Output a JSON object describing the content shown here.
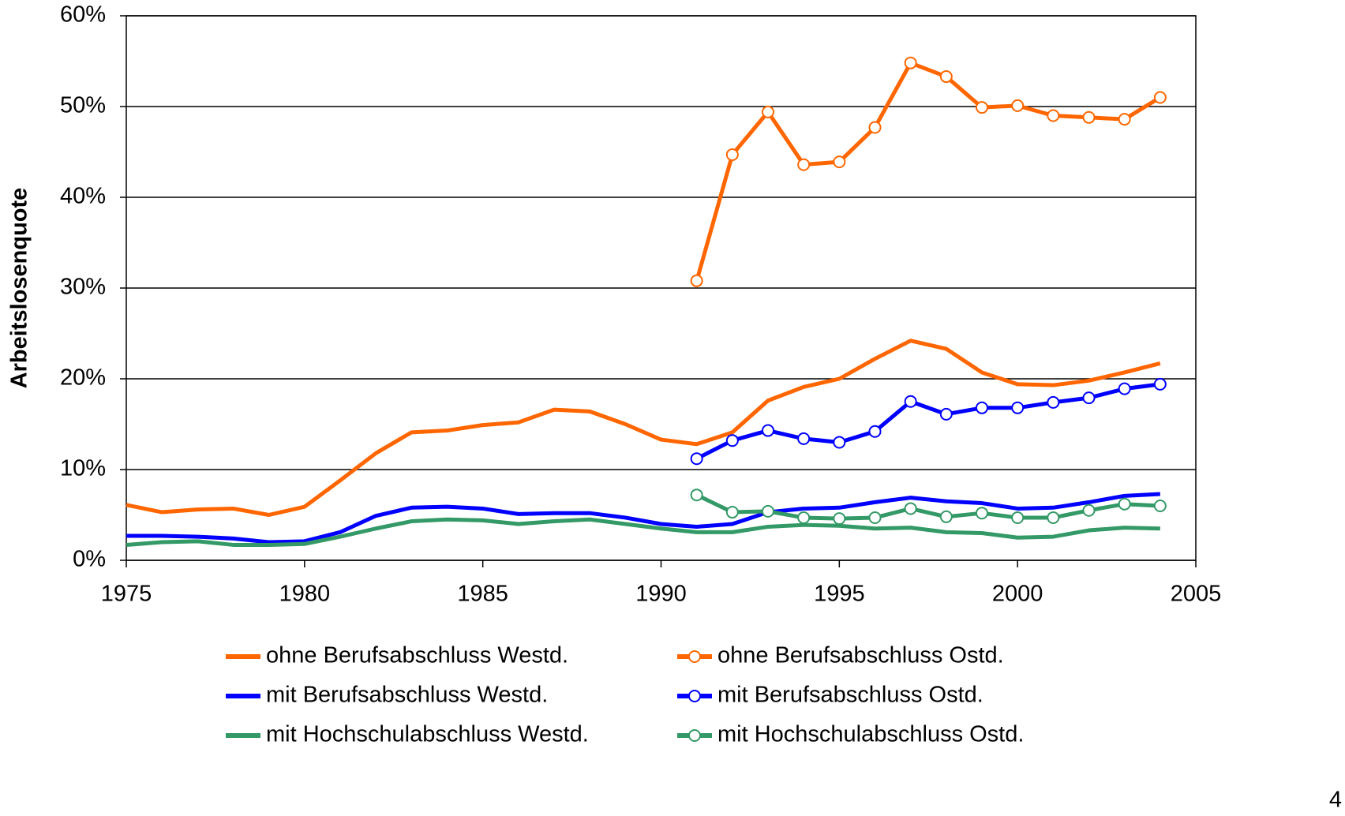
{
  "chart_data": {
    "type": "line",
    "y_label": "Arbeitslosenquote",
    "x": [
      1975,
      1976,
      1977,
      1978,
      1979,
      1980,
      1981,
      1982,
      1983,
      1984,
      1985,
      1986,
      1987,
      1988,
      1989,
      1990,
      1991,
      1992,
      1993,
      1994,
      1995,
      1996,
      1997,
      1998,
      1999,
      2000,
      2001,
      2002,
      2003,
      2004
    ],
    "xlim": [
      1975,
      2005
    ],
    "xticks": [
      1975,
      1980,
      1985,
      1990,
      1995,
      2000,
      2005
    ],
    "ylim": [
      0,
      60
    ],
    "yticks": [
      {
        "value": 0,
        "label": "0%"
      },
      {
        "value": 10,
        "label": "10%"
      },
      {
        "value": 20,
        "label": "20%"
      },
      {
        "value": 30,
        "label": "30%"
      },
      {
        "value": 40,
        "label": "40%"
      },
      {
        "value": 50,
        "label": "50%"
      },
      {
        "value": 60,
        "label": "60%"
      }
    ],
    "grid": true,
    "series": [
      {
        "name": "ohne Berufsabschluss Westd.",
        "color": "#ff6600",
        "markers": false,
        "values": [
          6.1,
          5.3,
          5.6,
          5.7,
          5.0,
          5.9,
          8.8,
          11.8,
          14.1,
          14.3,
          14.9,
          15.2,
          16.6,
          16.4,
          15.0,
          13.3,
          12.8,
          14.1,
          17.6,
          19.1,
          20.0,
          22.2,
          24.2,
          23.3,
          20.7,
          19.4,
          19.3,
          19.8,
          20.7,
          21.7
        ]
      },
      {
        "name": "ohne Berufsabschluss Ostd.",
        "color": "#ff6600",
        "markers": true,
        "values": [
          null,
          null,
          null,
          null,
          null,
          null,
          null,
          null,
          null,
          null,
          null,
          null,
          null,
          null,
          null,
          null,
          30.8,
          44.7,
          49.4,
          43.6,
          43.9,
          47.7,
          54.8,
          53.3,
          49.9,
          50.1,
          49.0,
          48.8,
          48.6,
          51.0
        ]
      },
      {
        "name": "mit Berufsabschluss Westd.",
        "color": "#0000ff",
        "markers": false,
        "values": [
          2.7,
          2.7,
          2.6,
          2.4,
          2.0,
          2.1,
          3.1,
          4.9,
          5.8,
          5.9,
          5.7,
          5.1,
          5.2,
          5.2,
          4.7,
          4.0,
          3.7,
          4.0,
          5.3,
          5.7,
          5.8,
          6.4,
          6.9,
          6.5,
          6.3,
          5.7,
          5.8,
          6.4,
          7.1,
          7.3
        ]
      },
      {
        "name": "mit Berufsabschluss Ostd.",
        "color": "#0000ff",
        "markers": true,
        "values": [
          null,
          null,
          null,
          null,
          null,
          null,
          null,
          null,
          null,
          null,
          null,
          null,
          null,
          null,
          null,
          null,
          11.2,
          13.2,
          14.3,
          13.4,
          13.0,
          14.2,
          17.5,
          16.1,
          16.8,
          16.8,
          17.4,
          17.9,
          18.9,
          19.4
        ]
      },
      {
        "name": "mit Hochschulabschluss Westd.",
        "color": "#339966",
        "markers": false,
        "values": [
          1.7,
          2.0,
          2.1,
          1.7,
          1.7,
          1.8,
          2.6,
          3.5,
          4.3,
          4.5,
          4.4,
          4.0,
          4.3,
          4.5,
          4.0,
          3.5,
          3.1,
          3.1,
          3.7,
          3.9,
          3.8,
          3.5,
          3.6,
          3.1,
          3.0,
          2.5,
          2.6,
          3.3,
          3.6,
          3.5
        ]
      },
      {
        "name": "mit Hochschulabschluss Ostd.",
        "color": "#339966",
        "markers": true,
        "values": [
          null,
          null,
          null,
          null,
          null,
          null,
          null,
          null,
          null,
          null,
          null,
          null,
          null,
          null,
          null,
          null,
          7.2,
          5.3,
          5.4,
          4.7,
          4.6,
          4.7,
          5.7,
          4.8,
          5.2,
          4.7,
          4.7,
          5.5,
          6.2,
          6.0
        ]
      }
    ],
    "page_number": "4"
  }
}
